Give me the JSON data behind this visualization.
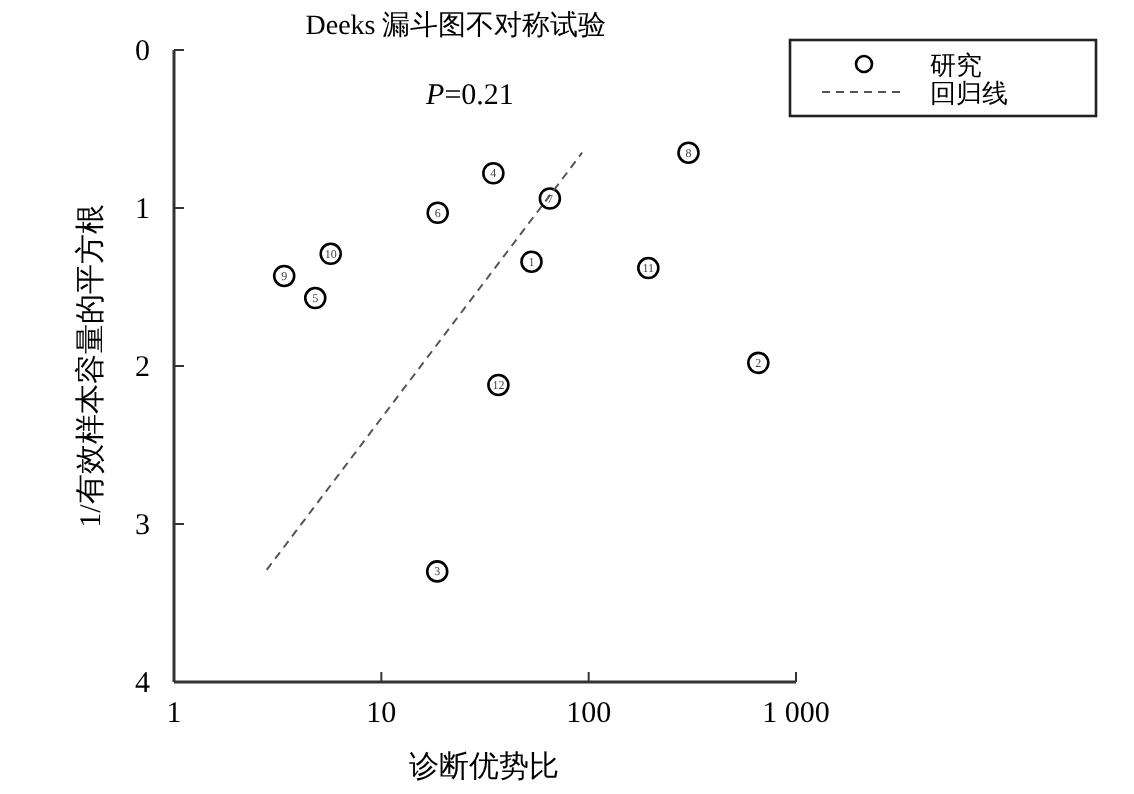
{
  "chart_data": {
    "type": "scatter",
    "title": "Deeks 漏斗图不对称试验",
    "subtitle": "*P*=0.21",
    "xlabel": "诊断优势比",
    "ylabel": "1/有效样本容量的平方根",
    "log": "x",
    "xlim": [
      1,
      1000
    ],
    "ylim": [
      4,
      0
    ],
    "xticks": [
      1,
      10,
      100,
      {
        "value": 1000,
        "label": "1 000"
      }
    ],
    "yticks": [
      0,
      1,
      2,
      3,
      4
    ],
    "legend": "top right",
    "grid": false,
    "series": [
      {
        "name": "研究",
        "marker": "circle",
        "color": "#000000",
        "x": [
          53,
          658,
          18.6,
          34.7,
          4.8,
          18.7,
          65,
          303,
          3.4,
          5.7,
          194,
          36.7
        ],
        "values": [
          1.34,
          1.98,
          3.3,
          0.78,
          1.57,
          1.03,
          0.94,
          0.65,
          1.43,
          1.29,
          1.38,
          2.12
        ]
      },
      {
        "name": "回归线",
        "type": "line",
        "line_style": "dashed",
        "color": "#555555",
        "x": [
          2.8,
          93
        ],
        "values": [
          3.29,
          0.65
        ]
      }
    ],
    "annotations": [
      {
        "text": "1",
        "x": 53,
        "y": 1.34
      },
      {
        "text": "2",
        "x": 658,
        "y": 1.98
      },
      {
        "text": "3",
        "x": 18.6,
        "y": 3.3
      },
      {
        "text": "4",
        "x": 34.7,
        "y": 0.78
      },
      {
        "text": "5",
        "x": 4.8,
        "y": 1.57
      },
      {
        "text": "6",
        "x": 18.7,
        "y": 1.03
      },
      {
        "text": "7",
        "x": 65,
        "y": 0.94
      },
      {
        "text": "8",
        "x": 303,
        "y": 0.65
      },
      {
        "text": "9",
        "x": 3.4,
        "y": 1.43
      },
      {
        "text": "10",
        "x": 5.7,
        "y": 1.29
      },
      {
        "text": "11",
        "x": 194,
        "y": 1.38
      },
      {
        "text": "12",
        "x": 36.7,
        "y": 2.12
      }
    ]
  }
}
